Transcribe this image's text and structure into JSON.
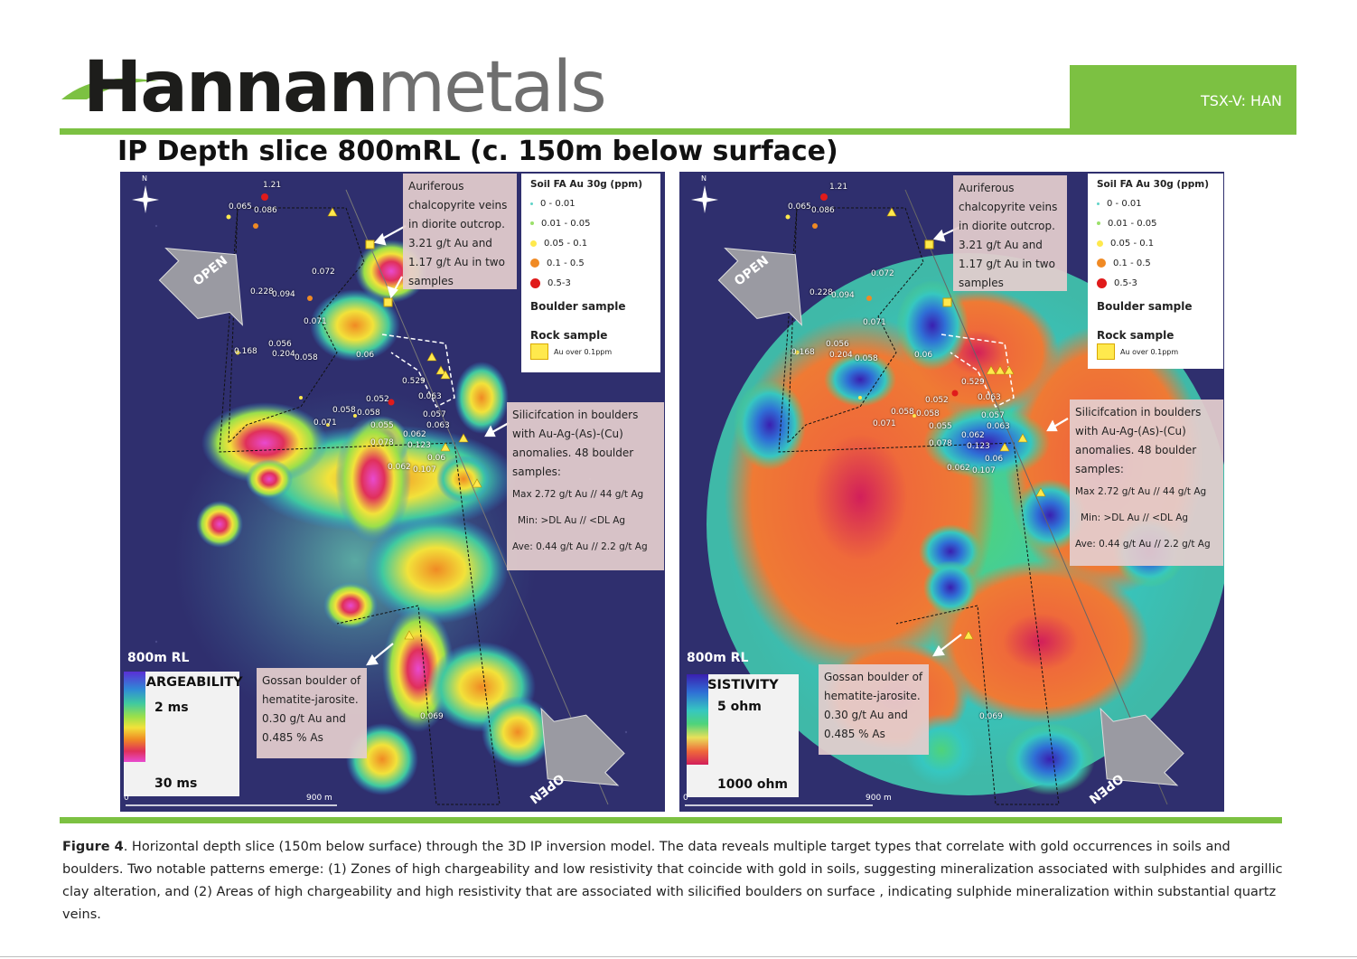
{
  "header": {
    "brand_part1": "Hannan",
    "brand_part2": "metals",
    "ticker": "TSX-V: HAN",
    "colors": {
      "brand_green": "#7cc142",
      "brand_dark": "#1d1d1b",
      "brand_grey": "#6f6f6f"
    }
  },
  "title": "IP Depth slice 800mRL  (c. 150m below surface)",
  "map_common": {
    "north": "N",
    "open": "OPEN",
    "depth_label": "800m RL",
    "scale_start": "0",
    "scale_end": "900 m",
    "legend": {
      "title": "Soil FA Au 30g (ppm)",
      "classes": [
        {
          "label": "0 - 0.01",
          "color": "#5fd3c8"
        },
        {
          "label": "0.01 - 0.05",
          "color": "#9be06a"
        },
        {
          "label": "0.05 - 0.1",
          "color": "#ffe94d"
        },
        {
          "label": "0.1 - 0.5",
          "color": "#f08a24"
        },
        {
          "label": "0.5-3",
          "color": "#e01b1b"
        }
      ],
      "boulder": "Boulder sample",
      "rock": "Rock sample",
      "rock_item": "Au over 0.1ppm"
    },
    "callouts": {
      "veins": [
        "Auriferous",
        "chalcopyrite veins",
        "in diorite outcrop.",
        "3.21 g/t Au  and",
        "1.17 g/t Au in two",
        "samples"
      ],
      "silica": [
        "Silicifcation in boulders",
        "with Au-Ag-(As)-(Cu)",
        "anomalies. 48 boulder",
        "samples:"
      ],
      "silica_stats": [
        "Max 2.72 g/t Au  // 44 g/t Ag",
        "Min: >DL Au //  <DL Ag",
        "Ave:  0.44 g/t Au // 2.2 g/t Ag"
      ],
      "gossan": [
        "Gossan boulder of",
        "hematite-jarosite.",
        "0.30 g/t Au and",
        "0.485 % As"
      ]
    },
    "samples": [
      "1.21",
      "0.065",
      "0.086",
      "0.072",
      "0.228",
      "0.094",
      "0.071",
      "0.168",
      "0.056",
      "0.204",
      "0.058",
      "0.06",
      "0.529",
      "0.052",
      "0.063",
      "0.058",
      "0.058",
      "0.057",
      "0.071",
      "0.055",
      "0.063",
      "0.062",
      "0.078",
      "0.123",
      "0.06",
      "0.062",
      "0.107",
      "0.069"
    ]
  },
  "panels": [
    {
      "id": "chargeability",
      "scale_title": "CHARGEABILITY",
      "scale_min": "2 ms",
      "scale_max": "30 ms",
      "scale_colors": [
        "#5a2fd6",
        "#2f8bd6",
        "#3fc9a0",
        "#9be04a",
        "#f2e23a",
        "#f08a24",
        "#e0305a",
        "#e84ad0"
      ]
    },
    {
      "id": "resistivity",
      "scale_title": "RESISTIVITY",
      "scale_min": "5 ohm",
      "scale_max": "1000 ohm",
      "scale_colors": [
        "#3a1fb0",
        "#2f6fd6",
        "#36c7c0",
        "#4fd37a",
        "#e8e05a",
        "#ef6a3a",
        "#d21f5a"
      ]
    }
  ],
  "caption": {
    "fig": "Figure 4",
    "text": ". Horizontal depth slice (150m below surface) through the 3D IP inversion model. The data reveals multiple target types that correlate with gold occurrences in soils and boulders. Two notable patterns emerge: (1) Zones of high chargeability and low resistivity that coincide with gold in soils, suggesting mineralization associated with sulphides and argillic clay alteration, and (2) Areas of high chargeability and high resistivity that are associated with silicified boulders on surface , indicating sulphide mineralization within substantial quartz veins."
  }
}
